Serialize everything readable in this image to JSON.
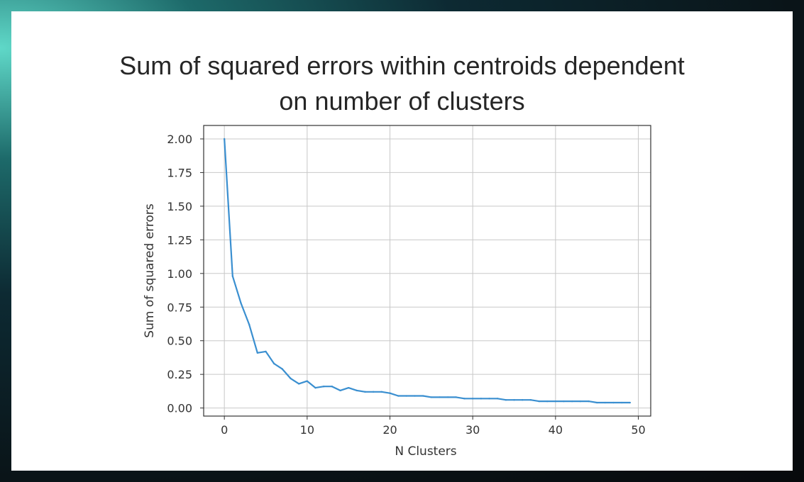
{
  "chart_data": {
    "type": "line",
    "title_line1": "Sum of squared errors within centroids dependent",
    "title_line2": "on number of clusters",
    "xlabel": "N Clusters",
    "ylabel": "Sum of squared errors",
    "xlim": [
      -2.5,
      51.5
    ],
    "ylim": [
      -0.06,
      2.1
    ],
    "xticks": [
      0,
      10,
      20,
      30,
      40,
      50
    ],
    "yticks": [
      0.0,
      0.25,
      0.5,
      0.75,
      1.0,
      1.25,
      1.5,
      1.75,
      2.0
    ],
    "xtick_labels": [
      "0",
      "10",
      "20",
      "30",
      "40",
      "50"
    ],
    "ytick_labels": [
      "0.00",
      "0.25",
      "0.50",
      "0.75",
      "1.00",
      "1.25",
      "1.50",
      "1.75",
      "2.00"
    ],
    "grid": true,
    "line_color": "#3a8fd0",
    "series": [
      {
        "x": [
          0,
          1,
          2,
          3,
          4,
          5,
          6,
          7,
          8,
          9,
          10,
          11,
          12,
          13,
          14,
          15,
          16,
          17,
          18,
          19,
          20,
          21,
          22,
          23,
          24,
          25,
          26,
          27,
          28,
          29,
          30,
          31,
          32,
          33,
          34,
          35,
          36,
          37,
          38,
          39,
          40,
          41,
          42,
          43,
          44,
          45,
          46,
          47,
          48,
          49
        ],
        "values": [
          2.0,
          0.98,
          0.78,
          0.62,
          0.41,
          0.42,
          0.33,
          0.29,
          0.22,
          0.18,
          0.2,
          0.15,
          0.16,
          0.16,
          0.13,
          0.15,
          0.13,
          0.12,
          0.12,
          0.12,
          0.11,
          0.09,
          0.09,
          0.09,
          0.09,
          0.08,
          0.08,
          0.08,
          0.08,
          0.07,
          0.07,
          0.07,
          0.07,
          0.07,
          0.06,
          0.06,
          0.06,
          0.06,
          0.05,
          0.05,
          0.05,
          0.05,
          0.05,
          0.05,
          0.05,
          0.04,
          0.04,
          0.04,
          0.04,
          0.04
        ]
      }
    ]
  }
}
